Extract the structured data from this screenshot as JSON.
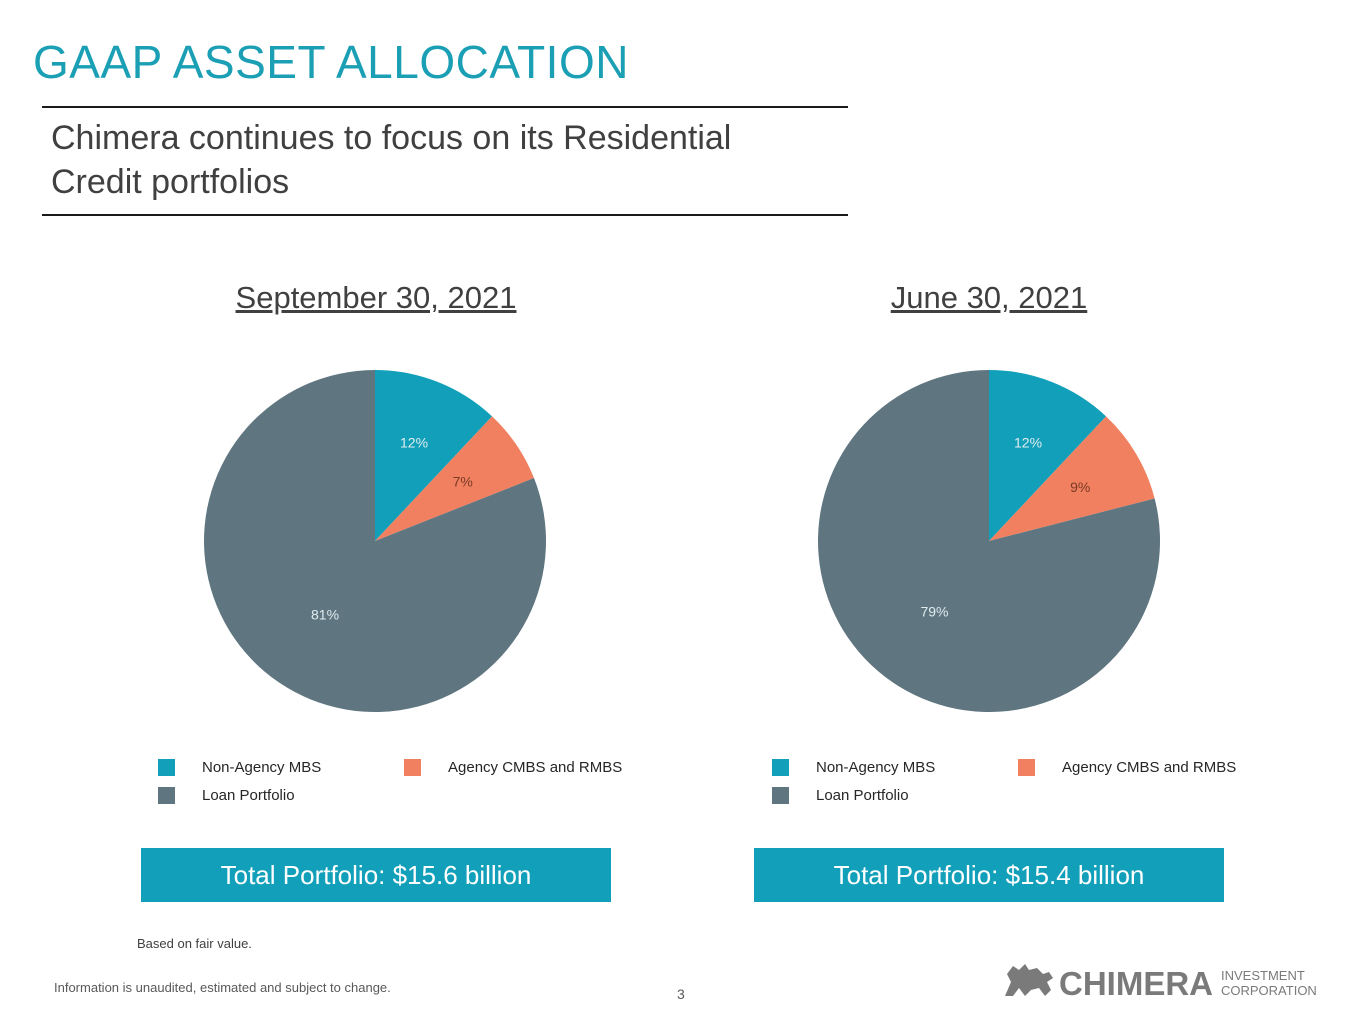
{
  "slide": {
    "title": "GAAP ASSET ALLOCATION",
    "subtitle": "Chimera continues to focus on its Residential Credit portfolios",
    "footnote": "Based on fair value.",
    "disclaimer": "Information is unaudited, estimated and subject to change.",
    "page_number": "3",
    "logo": {
      "wordmark": "CHIMERA",
      "tagline_line1": "INVESTMENT",
      "tagline_line2": "CORPORATION"
    }
  },
  "colors": {
    "accent": "#1a9fb4",
    "non_agency": "#129fb9",
    "agency": "#f0805f",
    "loan": "#5f7580",
    "total_box": "#129fb9"
  },
  "chart_data": [
    {
      "type": "pie",
      "title": "September 30, 2021",
      "categories": [
        "Non-Agency MBS",
        "Agency CMBS and RMBS",
        "Loan Portfolio"
      ],
      "values": [
        12,
        7,
        81
      ],
      "labels": [
        "12%",
        "7%",
        "81%"
      ],
      "colors": [
        "#129fb9",
        "#f0805f",
        "#5f7580"
      ],
      "legend_position": "bottom",
      "total": "Total Portfolio: $15.6 billion"
    },
    {
      "type": "pie",
      "title": "June 30, 2021",
      "categories": [
        "Non-Agency MBS",
        "Agency CMBS and RMBS",
        "Loan Portfolio"
      ],
      "values": [
        12,
        9,
        79
      ],
      "labels": [
        "12%",
        "9%",
        "79%"
      ],
      "colors": [
        "#129fb9",
        "#f0805f",
        "#5f7580"
      ],
      "legend_position": "bottom",
      "total": "Total Portfolio: $15.4 billion"
    }
  ]
}
